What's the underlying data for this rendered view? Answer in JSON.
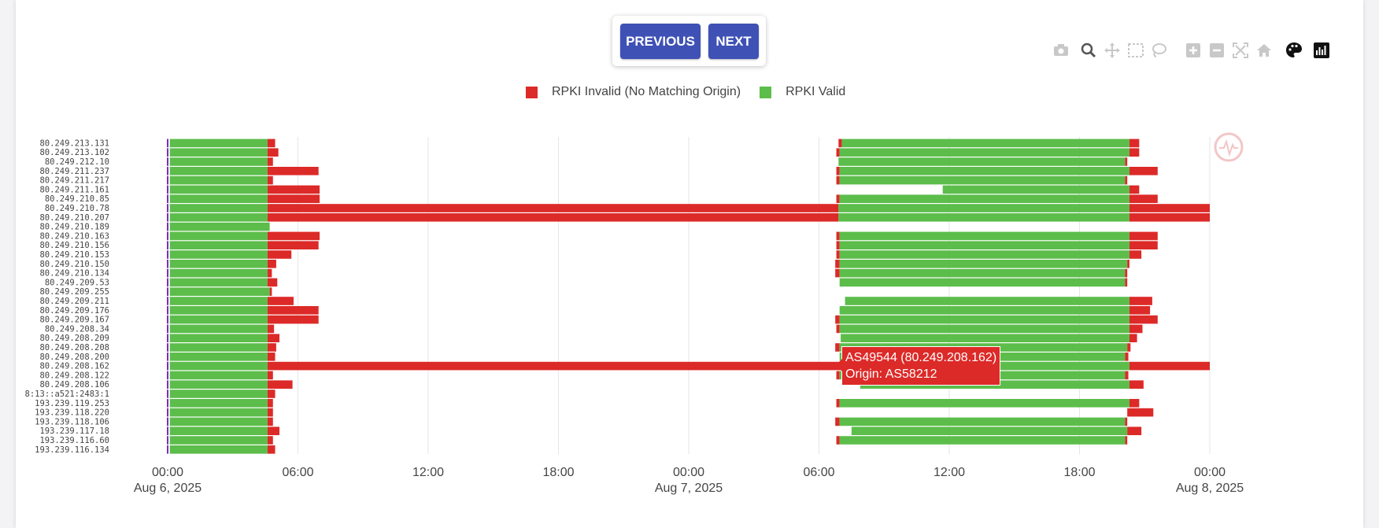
{
  "nav": {
    "previous_label": "PREVIOUS",
    "next_label": "NEXT"
  },
  "modebar": [
    "camera-icon",
    "zoom-icon",
    "pan-icon",
    "box-select-icon",
    "lasso-select-icon",
    "zoom-in-icon",
    "zoom-out-icon",
    "autoscale-icon",
    "reset-axes-icon",
    "palette-icon",
    "chart-toggle-icon"
  ],
  "tooltip": {
    "line1": "AS49544 (80.249.208.162)",
    "line2": "Origin: AS58212"
  },
  "colors": {
    "invalid": "#dc2a28",
    "valid": "#5cbd4b",
    "marker": "#7b2cbf",
    "accent": "#3f51b5"
  },
  "chart_data": {
    "type": "bar",
    "orientation": "horizontal-timeline",
    "title": "",
    "xlabel": "",
    "ylabel": "",
    "legend": {
      "placement": "top-center",
      "entries": [
        "RPKI Invalid (No Matching Origin)",
        "RPKI Valid"
      ]
    },
    "grid": true,
    "x_range": [
      "2025-08-06 00:00",
      "2025-08-08 00:00"
    ],
    "x_ticks": [
      {
        "t": 0,
        "label": "00:00",
        "sub": "Aug 6, 2025"
      },
      {
        "t": 6,
        "label": "06:00",
        "sub": ""
      },
      {
        "t": 12,
        "label": "12:00",
        "sub": ""
      },
      {
        "t": 18,
        "label": "18:00",
        "sub": ""
      },
      {
        "t": 24,
        "label": "00:00",
        "sub": "Aug 7, 2025"
      },
      {
        "t": 30,
        "label": "06:00",
        "sub": ""
      },
      {
        "t": 36,
        "label": "12:00",
        "sub": ""
      },
      {
        "t": 42,
        "label": "18:00",
        "sub": ""
      },
      {
        "t": 48,
        "label": "00:00",
        "sub": "Aug 8, 2025"
      }
    ],
    "categories": [
      "80.249.213.131",
      "80.249.213.102",
      "80.249.212.10",
      "80.249.211.237",
      "80.249.211.217",
      "80.249.211.161",
      "80.249.210.85",
      "80.249.210.78",
      "80.249.210.207",
      "80.249.210.189",
      "80.249.210.163",
      "80.249.210.156",
      "80.249.210.153",
      "80.249.210.150",
      "80.249.210.134",
      "80.249.209.53",
      "80.249.209.255",
      "80.249.209.211",
      "80.249.209.176",
      "80.249.209.167",
      "80.249.208.34",
      "80.249.208.209",
      "80.249.208.208",
      "80.249.208.200",
      "80.249.208.162",
      "80.249.208.122",
      "80.249.208.106",
      "8:13::a521:2483:1",
      "193.239.119.253",
      "193.239.118.220",
      "193.239.118.106",
      "193.239.117.18",
      "193.239.116.60",
      "193.239.116.134"
    ],
    "rows": [
      [
        [
          "v",
          0.1,
          4.6
        ],
        [
          "i",
          4.6,
          4.95
        ],
        [
          "i",
          30.9,
          31.05
        ],
        [
          "v",
          31.05,
          44.3
        ],
        [
          "i",
          44.3,
          44.75
        ]
      ],
      [
        [
          "v",
          0.1,
          4.6
        ],
        [
          "i",
          4.6,
          5.1
        ],
        [
          "i",
          30.8,
          30.95
        ],
        [
          "v",
          30.95,
          44.3
        ],
        [
          "i",
          44.3,
          44.75
        ]
      ],
      [
        [
          "v",
          0.1,
          4.6
        ],
        [
          "i",
          4.6,
          4.85
        ],
        [
          "v",
          30.9,
          44.1
        ],
        [
          "i",
          44.1,
          44.2
        ]
      ],
      [
        [
          "v",
          0.1,
          4.6
        ],
        [
          "i",
          4.6,
          6.95
        ],
        [
          "i",
          30.8,
          30.95
        ],
        [
          "v",
          30.95,
          44.3
        ],
        [
          "i",
          44.3,
          45.6
        ]
      ],
      [
        [
          "v",
          0.1,
          4.6
        ],
        [
          "i",
          4.6,
          4.85
        ],
        [
          "i",
          30.8,
          30.95
        ],
        [
          "v",
          30.95,
          44.1
        ],
        [
          "i",
          44.1,
          44.2
        ]
      ],
      [
        [
          "v",
          0.1,
          4.6
        ],
        [
          "i",
          4.6,
          7.0
        ],
        [
          "v",
          35.7,
          44.3
        ],
        [
          "i",
          44.3,
          44.75
        ]
      ],
      [
        [
          "v",
          0.1,
          4.6
        ],
        [
          "i",
          4.6,
          7.0
        ],
        [
          "i",
          30.8,
          30.95
        ],
        [
          "v",
          30.95,
          44.3
        ],
        [
          "i",
          44.3,
          45.6
        ]
      ],
      [
        [
          "v",
          0.1,
          4.6
        ],
        [
          "i",
          4.6,
          30.9
        ],
        [
          "v",
          30.9,
          44.3
        ],
        [
          "i",
          44.3,
          48.0
        ]
      ],
      [
        [
          "v",
          0.1,
          4.6
        ],
        [
          "i",
          4.6,
          30.9
        ],
        [
          "v",
          30.9,
          44.3
        ],
        [
          "i",
          44.3,
          48.0
        ]
      ],
      [
        [
          "v",
          0.1,
          4.7
        ]
      ],
      [
        [
          "v",
          0.1,
          4.6
        ],
        [
          "i",
          4.6,
          7.0
        ],
        [
          "i",
          30.8,
          30.95
        ],
        [
          "v",
          30.95,
          44.3
        ],
        [
          "i",
          44.3,
          45.6
        ]
      ],
      [
        [
          "v",
          0.1,
          4.6
        ],
        [
          "i",
          4.6,
          6.95
        ],
        [
          "i",
          30.8,
          30.95
        ],
        [
          "v",
          30.95,
          44.3
        ],
        [
          "i",
          44.3,
          45.6
        ]
      ],
      [
        [
          "v",
          0.1,
          4.6
        ],
        [
          "i",
          4.6,
          5.7
        ],
        [
          "i",
          30.8,
          30.95
        ],
        [
          "v",
          30.95,
          44.3
        ],
        [
          "i",
          44.3,
          44.85
        ]
      ],
      [
        [
          "v",
          0.1,
          4.6
        ],
        [
          "i",
          4.6,
          5.0
        ],
        [
          "i",
          30.75,
          30.95
        ],
        [
          "v",
          30.95,
          44.2
        ],
        [
          "i",
          44.2,
          44.3
        ]
      ],
      [
        [
          "v",
          0.1,
          4.6
        ],
        [
          "i",
          4.6,
          4.8
        ],
        [
          "i",
          30.75,
          30.95
        ],
        [
          "v",
          30.95,
          44.1
        ],
        [
          "i",
          44.1,
          44.2
        ]
      ],
      [
        [
          "v",
          0.1,
          4.6
        ],
        [
          "i",
          4.6,
          5.05
        ],
        [
          "v",
          30.95,
          44.1
        ],
        [
          "i",
          44.1,
          44.2
        ]
      ],
      [
        [
          "v",
          0.1,
          4.7
        ],
        [
          "i",
          4.7,
          4.8
        ]
      ],
      [
        [
          "v",
          0.1,
          4.6
        ],
        [
          "i",
          4.6,
          5.8
        ],
        [
          "v",
          31.2,
          44.3
        ],
        [
          "i",
          44.3,
          45.35
        ]
      ],
      [
        [
          "v",
          0.1,
          4.6
        ],
        [
          "i",
          4.6,
          6.95
        ],
        [
          "v",
          30.95,
          44.3
        ],
        [
          "i",
          44.3,
          45.25
        ]
      ],
      [
        [
          "v",
          0.1,
          4.6
        ],
        [
          "i",
          4.6,
          6.95
        ],
        [
          "i",
          30.75,
          30.95
        ],
        [
          "v",
          30.95,
          44.3
        ],
        [
          "i",
          44.3,
          45.6
        ]
      ],
      [
        [
          "v",
          0.1,
          4.6
        ],
        [
          "i",
          4.6,
          4.9
        ],
        [
          "i",
          30.8,
          30.95
        ],
        [
          "v",
          30.95,
          44.3
        ],
        [
          "i",
          44.3,
          44.9
        ]
      ],
      [
        [
          "v",
          0.1,
          4.6
        ],
        [
          "i",
          4.6,
          5.15
        ],
        [
          "v",
          31.0,
          44.3
        ],
        [
          "i",
          44.3,
          44.65
        ]
      ],
      [
        [
          "v",
          0.1,
          4.6
        ],
        [
          "i",
          4.6,
          5.0
        ],
        [
          "i",
          30.75,
          30.95
        ],
        [
          "v",
          30.95,
          44.2
        ],
        [
          "i",
          44.2,
          44.35
        ]
      ],
      [
        [
          "v",
          0.1,
          4.6
        ],
        [
          "i",
          4.6,
          4.95
        ],
        [
          "v",
          30.95,
          44.1
        ],
        [
          "i",
          44.1,
          44.25
        ]
      ],
      [
        [
          "v",
          0.1,
          4.6
        ],
        [
          "i",
          4.6,
          31.0
        ],
        [
          "v",
          31.0,
          44.3
        ],
        [
          "i",
          44.3,
          48.0
        ]
      ],
      [
        [
          "v",
          0.1,
          4.6
        ],
        [
          "i",
          4.6,
          4.85
        ],
        [
          "i",
          30.8,
          30.95
        ],
        [
          "v",
          30.95,
          44.1
        ],
        [
          "i",
          44.1,
          44.25
        ]
      ],
      [
        [
          "v",
          0.1,
          4.6
        ],
        [
          "i",
          4.6,
          5.75
        ],
        [
          "v",
          31.9,
          44.3
        ],
        [
          "i",
          44.3,
          44.95
        ]
      ],
      [
        [
          "v",
          0.1,
          4.6
        ],
        [
          "i",
          4.6,
          4.95
        ]
      ],
      [
        [
          "v",
          0.1,
          4.6
        ],
        [
          "i",
          4.6,
          4.85
        ],
        [
          "i",
          30.8,
          30.95
        ],
        [
          "v",
          30.95,
          44.3
        ],
        [
          "i",
          44.3,
          44.75
        ]
      ],
      [
        [
          "v",
          0.1,
          4.6
        ],
        [
          "i",
          4.6,
          4.85
        ],
        [
          "i",
          44.2,
          45.4
        ]
      ],
      [
        [
          "v",
          0.1,
          4.6
        ],
        [
          "i",
          4.6,
          4.85
        ],
        [
          "i",
          30.75,
          30.95
        ],
        [
          "v",
          30.95,
          44.1
        ],
        [
          "i",
          44.1,
          44.2
        ]
      ],
      [
        [
          "v",
          0.1,
          4.6
        ],
        [
          "i",
          4.6,
          5.15
        ],
        [
          "v",
          31.5,
          44.2
        ],
        [
          "i",
          44.2,
          44.85
        ]
      ],
      [
        [
          "v",
          0.1,
          4.6
        ],
        [
          "i",
          4.6,
          4.85
        ],
        [
          "i",
          30.8,
          30.95
        ],
        [
          "v",
          30.95,
          44.1
        ],
        [
          "i",
          44.1,
          44.2
        ]
      ],
      [
        [
          "v",
          0.1,
          4.6
        ],
        [
          "i",
          4.6,
          4.95
        ]
      ]
    ]
  }
}
